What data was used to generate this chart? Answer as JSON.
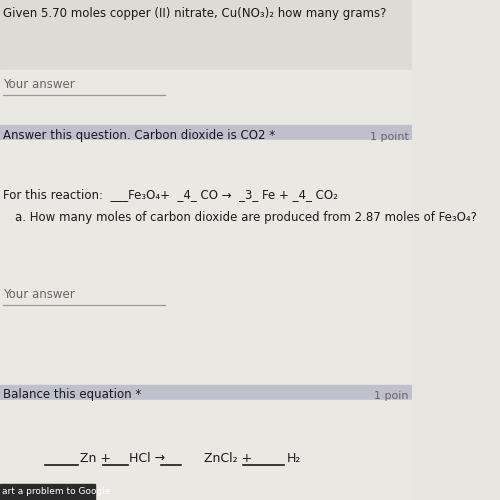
{
  "top_text": "Given 5.70 moles copper (II) nitrate, Cu(NO₃)₂ how many grams?",
  "your_answer_1": "Your answer",
  "section2_label": "Answer this question. Carbon dioxide is CO2 *",
  "section2_points": "1 point",
  "reaction_line1": "For this reaction:  ___Fe₃O₄+  _4_ CO →  _3_ Fe + _4_ CO₂",
  "question_a": "a. How many moles of carbon dioxide are produced from 2.87 moles of Fe₃O₄?",
  "your_answer_2": "Your answer",
  "section3_label": "Balance this equation *",
  "section3_points": "1 poin",
  "footer": "art a problem to Google",
  "bg_main": "#e8e6e0",
  "bg_divider": "#c8c8d0",
  "text_dark": "#1a1a1a",
  "text_grey": "#666666"
}
